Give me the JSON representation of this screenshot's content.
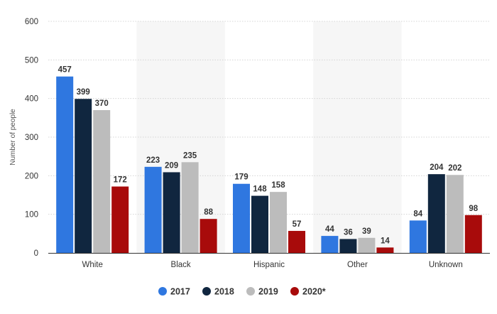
{
  "chart_data": {
    "type": "bar",
    "categories": [
      "White",
      "Black",
      "Hispanic",
      "Other",
      "Unknown"
    ],
    "series": [
      {
        "name": "2017",
        "color": "#2f77e0",
        "values": [
          457,
          223,
          179,
          44,
          84
        ]
      },
      {
        "name": "2018",
        "color": "#10263f",
        "values": [
          399,
          209,
          148,
          36,
          204
        ]
      },
      {
        "name": "2019",
        "color": "#bcbcbc",
        "values": [
          370,
          235,
          158,
          39,
          202
        ]
      },
      {
        "name": "2020*",
        "color": "#a80b0b",
        "values": [
          172,
          88,
          57,
          14,
          98
        ]
      }
    ],
    "ylabel": "Number of people",
    "xlabel": "",
    "title": "",
    "ylim": [
      0,
      600
    ],
    "yticks": [
      0,
      100,
      200,
      300,
      400,
      500,
      600
    ],
    "grid": "horizontal dotted",
    "legend": "bottom-center",
    "data_labels": true,
    "alternating_category_shading": true
  }
}
